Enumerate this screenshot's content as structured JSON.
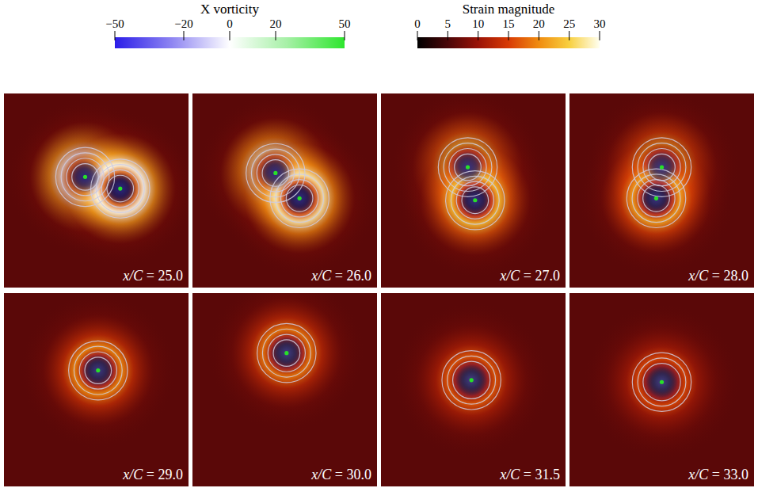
{
  "chart_data": {
    "type": "field",
    "colorbars": [
      {
        "title": "X vorticity",
        "range": [
          -50,
          50
        ],
        "ticks": [
          -50,
          -20,
          0,
          20,
          50
        ],
        "colors": [
          "#2b1de8",
          "#8f86f2",
          "#ffffff",
          "#a6f0a6",
          "#2ee62e"
        ]
      },
      {
        "title": "Strain magnitude",
        "range": [
          0,
          30
        ],
        "ticks": [
          0,
          5,
          10,
          15,
          20,
          25,
          30
        ],
        "colors": [
          "#000000",
          "#4a0608",
          "#9a1206",
          "#d83a04",
          "#f08c10",
          "#f8d040",
          "#fffff0"
        ]
      }
    ],
    "panels": [
      {
        "label": "x/C = 25.0",
        "background_strain": 6,
        "strain_peak": 30,
        "core_vorticity": -40,
        "contour_levels": [
          10,
          20,
          30,
          40
        ],
        "vortices": [
          [
            0.44,
            0.43
          ],
          [
            0.63,
            0.49
          ]
        ]
      },
      {
        "label": "x/C = 26.0",
        "background_strain": 6,
        "strain_peak": 28,
        "core_vorticity": -38,
        "contour_levels": [
          10,
          20,
          30,
          40
        ],
        "vortices": [
          [
            0.45,
            0.41
          ],
          [
            0.58,
            0.54
          ]
        ]
      },
      {
        "label": "x/C = 27.0",
        "background_strain": 6,
        "strain_peak": 24,
        "core_vorticity": -36,
        "contour_levels": [
          10,
          20,
          30,
          40
        ],
        "vortices": [
          [
            0.47,
            0.38
          ],
          [
            0.51,
            0.55
          ]
        ]
      },
      {
        "label": "x/C = 28.0",
        "background_strain": 6,
        "strain_peak": 22,
        "core_vorticity": -34,
        "contour_levels": [
          10,
          20,
          30,
          40
        ],
        "vortices": [
          [
            0.5,
            0.38
          ],
          [
            0.47,
            0.54
          ]
        ]
      },
      {
        "label": "x/C = 29.0",
        "background_strain": 6,
        "strain_peak": 20,
        "core_vorticity": -32,
        "contour_levels": [
          10,
          20,
          30,
          40
        ],
        "vortices": [
          [
            0.51,
            0.4
          ]
        ]
      },
      {
        "label": "x/C = 30.0",
        "background_strain": 6,
        "strain_peak": 19,
        "core_vorticity": -30,
        "contour_levels": [
          10,
          20,
          30,
          40
        ],
        "vortices": [
          [
            0.51,
            0.31
          ]
        ]
      },
      {
        "label": "x/C = 31.5",
        "background_strain": 6,
        "strain_peak": 17,
        "core_vorticity": -30,
        "contour_levels": [
          10,
          20,
          30
        ],
        "vortices": [
          [
            0.49,
            0.45
          ]
        ]
      },
      {
        "label": "x/C = 33.0",
        "background_strain": 6,
        "strain_peak": 16,
        "core_vorticity": -30,
        "contour_levels": [
          10,
          20,
          30
        ],
        "vortices": [
          [
            0.5,
            0.46
          ]
        ]
      }
    ]
  }
}
